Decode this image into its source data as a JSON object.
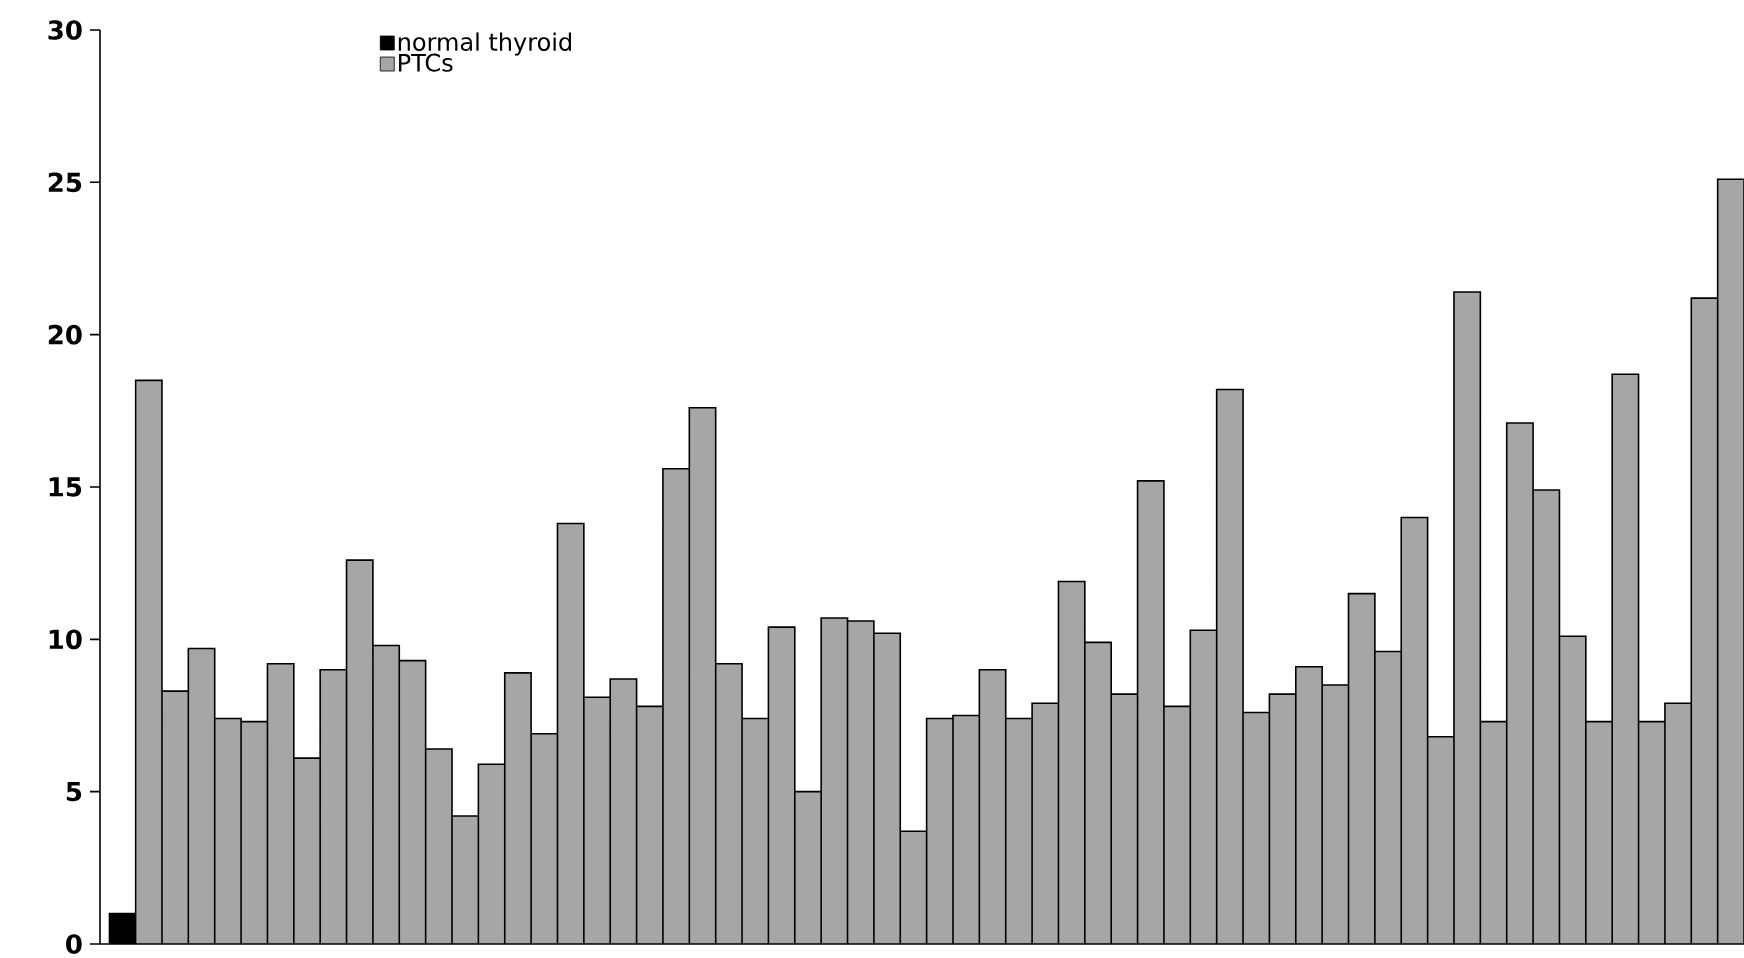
{
  "chart_data": {
    "type": "bar",
    "categories": [
      null,
      null,
      null,
      null,
      null,
      null,
      null,
      null,
      null,
      null,
      null,
      null,
      null,
      null,
      null,
      null,
      null,
      null,
      null,
      null,
      null,
      null,
      null,
      null,
      null,
      null,
      null,
      null,
      null,
      null,
      null,
      null,
      null,
      null,
      null,
      null,
      null,
      null,
      null,
      null,
      null,
      null,
      null,
      null,
      null,
      null,
      null,
      null,
      null,
      null,
      null,
      null,
      null,
      null,
      null,
      null,
      null,
      null,
      null,
      null,
      null,
      null
    ],
    "series": [
      {
        "name": "normal thyroid",
        "color": "#000000",
        "values": [
          1.0,
          null,
          null,
          null,
          null,
          null,
          null,
          null,
          null,
          null,
          null,
          null,
          null,
          null,
          null,
          null,
          null,
          null,
          null,
          null,
          null,
          null,
          null,
          null,
          null,
          null,
          null,
          null,
          null,
          null,
          null,
          null,
          null,
          null,
          null,
          null,
          null,
          null,
          null,
          null,
          null,
          null,
          null,
          null,
          null,
          null,
          null,
          null,
          null,
          null,
          null,
          null,
          null,
          null,
          null,
          null,
          null,
          null,
          null,
          null,
          null,
          null
        ]
      },
      {
        "name": "PTCs",
        "color": "#a6a6a6",
        "values": [
          null,
          18.5,
          8.3,
          9.7,
          7.4,
          7.3,
          9.2,
          6.1,
          9.0,
          12.6,
          9.8,
          9.3,
          6.4,
          4.2,
          5.9,
          8.9,
          6.9,
          13.8,
          8.1,
          8.7,
          7.8,
          15.6,
          17.6,
          9.2,
          7.4,
          10.4,
          5.0,
          10.7,
          10.6,
          10.2,
          3.7,
          7.4,
          7.5,
          9.0,
          7.4,
          7.9,
          11.9,
          9.9,
          8.2,
          15.2,
          7.8,
          10.3,
          18.2,
          7.6,
          8.2,
          9.1,
          8.5,
          11.5,
          9.6,
          14.0,
          6.8,
          21.4,
          7.3,
          17.1,
          14.9,
          10.1,
          7.3,
          18.7,
          7.3,
          7.9,
          21.2,
          25.1
        ]
      }
    ],
    "ylim": [
      0,
      30
    ],
    "yticks": [
      0,
      5,
      10,
      15,
      20,
      25,
      30
    ],
    "tick_labels": "y",
    "legend": "top",
    "grid": false
  }
}
